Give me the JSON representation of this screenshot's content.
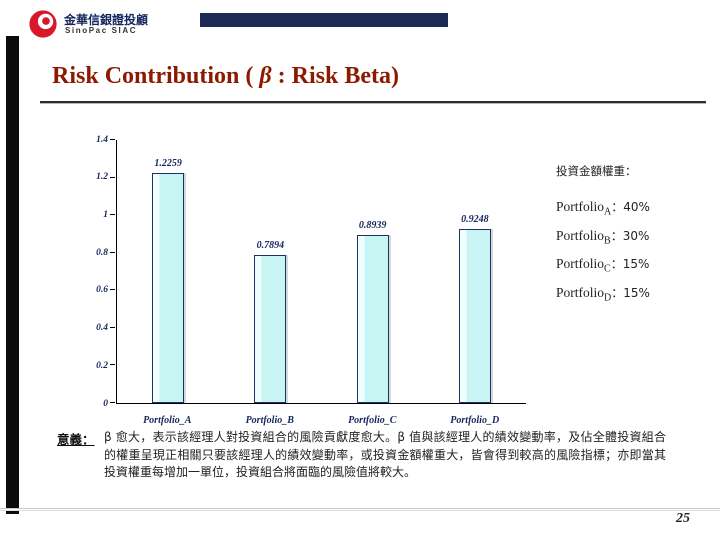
{
  "header": {
    "brand_cn": "金華信銀證投顧",
    "brand_en": "SinoPac SIAC",
    "accent_bar_color": "#1b2a55"
  },
  "title": {
    "prefix": "Risk Contribution ( ",
    "beta": "β",
    "suffix": " : Risk Beta)",
    "color": "#8b1a00"
  },
  "weights_panel": {
    "heading": "投資金額權重：",
    "separator": "：",
    "items": [
      {
        "label": "Portfolio",
        "sub": "A",
        "percent": "40%"
      },
      {
        "label": "Portfolio",
        "sub": "B",
        "percent": "30%"
      },
      {
        "label": "Portfolio",
        "sub": "C",
        "percent": "15%"
      },
      {
        "label": "Portfolio",
        "sub": "D",
        "percent": "15%"
      }
    ]
  },
  "meaning": {
    "label": "意義：",
    "text": "β 愈大，表示該經理人對投資組合的風險貢獻度愈大。β 值與該經理人的績效變動率，及佔全體投資組合的權重呈現正相關只要該經理人的績效變動率，或投資金額權重大，皆會得到較高的風險指標；亦即當其投資權重每增加一單位，投資組合將面臨的風險值將較大。"
  },
  "footer": {
    "page_number": "25"
  },
  "chart_data": {
    "type": "bar",
    "categories": [
      "Portfolio_A",
      "Portfolio_B",
      "Portfolio_C",
      "Portfolio_D"
    ],
    "values": [
      1.2259,
      0.7894,
      0.8939,
      0.9248
    ],
    "data_labels": [
      "1.2259",
      "0.7894",
      "0.8939",
      "0.9248"
    ],
    "title": "",
    "xlabel": "",
    "ylabel": "",
    "ylim": [
      0,
      1.4
    ],
    "yticks": [
      0,
      0.2,
      0.4,
      0.6,
      0.8,
      1,
      1.2,
      1.4
    ],
    "ytick_labels": [
      "0",
      "0.2",
      "0.4",
      "0.6",
      "0.8",
      "1",
      "1.2",
      "1.4"
    ],
    "grid": false,
    "legend": false,
    "bar_color": "#ccffff",
    "bar_border_color": "#1f3064",
    "label_color": "#16265c"
  }
}
